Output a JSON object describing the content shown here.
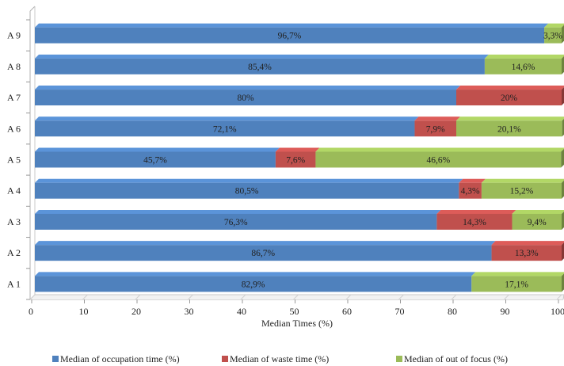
{
  "chart_data": {
    "type": "bar",
    "orientation": "horizontal",
    "stacked": true,
    "categories": [
      "A 1",
      "A 2",
      "A 3",
      "A 4",
      "A 5",
      "A 6",
      "A 7",
      "A 8",
      "A 9"
    ],
    "series": [
      {
        "name": "Median of occupation time (%)",
        "color": "#4f81bd",
        "values": [
          82.9,
          86.7,
          76.3,
          80.5,
          45.7,
          72.1,
          80,
          85.4,
          96.7
        ],
        "labels": [
          "82,9%",
          "86,7%",
          "76,3%",
          "80,5%",
          "45,7%",
          "72,1%",
          "80%",
          "85,4%",
          "96,7%"
        ]
      },
      {
        "name": "Median of waste time (%)",
        "color": "#c0504d",
        "values": [
          0,
          13.3,
          14.3,
          4.3,
          7.6,
          7.9,
          20,
          0,
          0
        ],
        "labels": [
          "",
          "13,3%",
          "14,3%",
          "4,3%",
          "7,6%",
          "7,9%",
          "20%",
          "",
          ""
        ]
      },
      {
        "name": "Median of out of focus (%)",
        "color": "#9bbb59",
        "values": [
          17.1,
          0,
          9.4,
          15.2,
          46.6,
          20.1,
          0,
          14.6,
          3.3
        ],
        "labels": [
          "17,1%",
          "",
          "9,4%",
          "15,2%",
          "46,6%",
          "20,1%",
          "",
          "14,6%",
          "3,3%"
        ]
      }
    ],
    "xlabel": "Median Times (%)",
    "ylabel": "",
    "xlim": [
      0,
      100
    ],
    "xticks": [
      "0",
      "10",
      "20",
      "30",
      "40",
      "50",
      "60",
      "70",
      "80",
      "90",
      "100"
    ],
    "legend_position": "bottom",
    "grid": false
  }
}
